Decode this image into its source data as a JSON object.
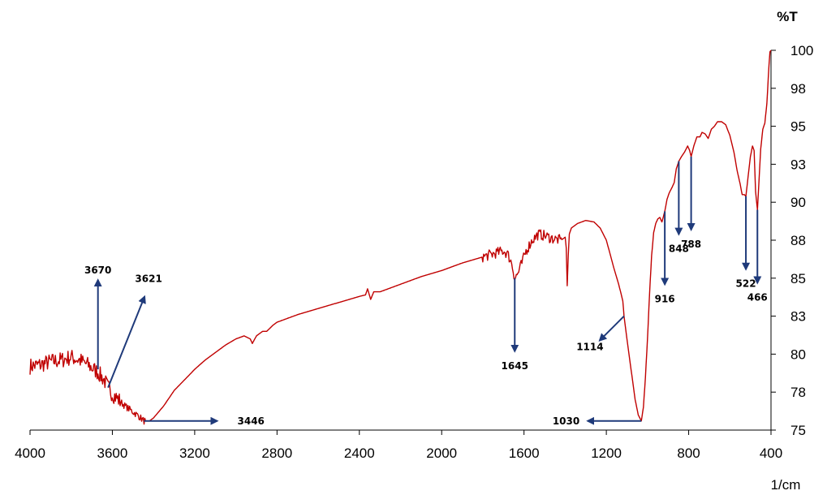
{
  "chart_data": {
    "type": "line",
    "y_unit_label": "%T",
    "x_unit_label": "1/cm",
    "xlim": [
      4000,
      400
    ],
    "ylim": [
      75,
      100
    ],
    "x_ticks": [
      "4000",
      "3600",
      "3200",
      "2800",
      "2400",
      "2000",
      "1600",
      "1200",
      "800",
      "400"
    ],
    "y_ticks": [
      "75",
      "78",
      "80",
      "83",
      "85",
      "88",
      "90",
      "93",
      "95",
      "98",
      "100"
    ],
    "line_color": "#c00000",
    "arrow_color": "#1f3a7a",
    "grid": false,
    "series": [
      {
        "name": "",
        "points": [
          [
            4000,
            79.2
          ],
          [
            3950,
            79.3
          ],
          [
            3900,
            79.5
          ],
          [
            3850,
            79.6
          ],
          [
            3800,
            79.8
          ],
          [
            3760,
            79.6
          ],
          [
            3720,
            79.3
          ],
          [
            3690,
            79.0
          ],
          [
            3670,
            78.8
          ],
          [
            3640,
            78.3
          ],
          [
            3621,
            77.8
          ],
          [
            3600,
            77.4
          ],
          [
            3570,
            77.0
          ],
          [
            3540,
            76.6
          ],
          [
            3500,
            76.2
          ],
          [
            3470,
            75.9
          ],
          [
            3446,
            75.6
          ],
          [
            3420,
            75.6
          ],
          [
            3400,
            75.8
          ],
          [
            3350,
            76.6
          ],
          [
            3300,
            77.6
          ],
          [
            3250,
            78.3
          ],
          [
            3200,
            79.0
          ],
          [
            3150,
            79.6
          ],
          [
            3100,
            80.1
          ],
          [
            3050,
            80.6
          ],
          [
            3000,
            81.0
          ],
          [
            2960,
            81.2
          ],
          [
            2930,
            81.0
          ],
          [
            2920,
            80.7
          ],
          [
            2900,
            81.2
          ],
          [
            2870,
            81.5
          ],
          [
            2850,
            81.5
          ],
          [
            2820,
            81.9
          ],
          [
            2800,
            82.1
          ],
          [
            2700,
            82.6
          ],
          [
            2600,
            83.0
          ],
          [
            2500,
            83.4
          ],
          [
            2400,
            83.8
          ],
          [
            2370,
            83.9
          ],
          [
            2360,
            84.3
          ],
          [
            2345,
            83.6
          ],
          [
            2330,
            84.1
          ],
          [
            2300,
            84.1
          ],
          [
            2200,
            84.6
          ],
          [
            2100,
            85.1
          ],
          [
            2000,
            85.5
          ],
          [
            1900,
            86.0
          ],
          [
            1800,
            86.4
          ],
          [
            1750,
            86.6
          ],
          [
            1700,
            86.8
          ],
          [
            1680,
            86.6
          ],
          [
            1660,
            86.0
          ],
          [
            1645,
            85.0
          ],
          [
            1630,
            85.3
          ],
          [
            1610,
            86.0
          ],
          [
            1590,
            86.8
          ],
          [
            1560,
            87.5
          ],
          [
            1530,
            87.9
          ],
          [
            1500,
            87.8
          ],
          [
            1460,
            87.6
          ],
          [
            1420,
            87.5
          ],
          [
            1400,
            87.7
          ],
          [
            1395,
            87.0
          ],
          [
            1390,
            84.5
          ],
          [
            1385,
            86.5
          ],
          [
            1380,
            87.9
          ],
          [
            1370,
            88.3
          ],
          [
            1340,
            88.6
          ],
          [
            1300,
            88.8
          ],
          [
            1260,
            88.7
          ],
          [
            1230,
            88.3
          ],
          [
            1200,
            87.5
          ],
          [
            1180,
            86.5
          ],
          [
            1160,
            85.5
          ],
          [
            1140,
            84.6
          ],
          [
            1120,
            83.5
          ],
          [
            1114,
            82.5
          ],
          [
            1100,
            81.0
          ],
          [
            1080,
            79.0
          ],
          [
            1060,
            77.0
          ],
          [
            1045,
            76.0
          ],
          [
            1030,
            75.6
          ],
          [
            1020,
            76.5
          ],
          [
            1010,
            78.5
          ],
          [
            1000,
            81.0
          ],
          [
            990,
            84.0
          ],
          [
            980,
            86.5
          ],
          [
            970,
            88.0
          ],
          [
            960,
            88.6
          ],
          [
            950,
            88.9
          ],
          [
            940,
            89.0
          ],
          [
            930,
            88.7
          ],
          [
            916,
            89.4
          ],
          [
            905,
            90.2
          ],
          [
            895,
            90.6
          ],
          [
            880,
            91.0
          ],
          [
            870,
            91.3
          ],
          [
            860,
            92.2
          ],
          [
            848,
            92.7
          ],
          [
            835,
            93.0
          ],
          [
            820,
            93.3
          ],
          [
            805,
            93.7
          ],
          [
            795,
            93.4
          ],
          [
            788,
            93.0
          ],
          [
            775,
            93.7
          ],
          [
            760,
            94.3
          ],
          [
            745,
            94.3
          ],
          [
            735,
            94.6
          ],
          [
            720,
            94.5
          ],
          [
            705,
            94.2
          ],
          [
            690,
            94.8
          ],
          [
            675,
            95.0
          ],
          [
            660,
            95.3
          ],
          [
            640,
            95.3
          ],
          [
            620,
            95.1
          ],
          [
            600,
            94.4
          ],
          [
            580,
            93.3
          ],
          [
            565,
            92.1
          ],
          [
            550,
            91.2
          ],
          [
            540,
            90.5
          ],
          [
            530,
            90.5
          ],
          [
            522,
            90.4
          ],
          [
            512,
            91.6
          ],
          [
            500,
            93.0
          ],
          [
            490,
            93.7
          ],
          [
            482,
            93.4
          ],
          [
            475,
            90.7
          ],
          [
            466,
            89.5
          ],
          [
            458,
            91.5
          ],
          [
            450,
            93.5
          ],
          [
            440,
            94.8
          ],
          [
            430,
            95.2
          ],
          [
            420,
            96.5
          ],
          [
            410,
            99.0
          ],
          [
            405,
            99.9
          ],
          [
            400,
            100.0
          ]
        ]
      }
    ],
    "annotations": [
      {
        "label": "3670",
        "x": 3670,
        "y": 79.0,
        "dir": "up"
      },
      {
        "label": "3621",
        "x": 3621,
        "y": 77.8,
        "dir": "up-right"
      },
      {
        "label": "3446",
        "x": 3446,
        "y": 75.6,
        "dir": "right"
      },
      {
        "label": "1645",
        "x": 1645,
        "y": 85.0,
        "dir": "down"
      },
      {
        "label": "1114",
        "x": 1114,
        "y": 82.5,
        "dir": "down-left"
      },
      {
        "label": "1030",
        "x": 1030,
        "y": 75.6,
        "dir": "left"
      },
      {
        "label": "916",
        "x": 916,
        "y": 89.4,
        "dir": "down"
      },
      {
        "label": "848",
        "x": 848,
        "y": 92.7,
        "dir": "down"
      },
      {
        "label": "788",
        "x": 788,
        "y": 93.0,
        "dir": "down"
      },
      {
        "label": "522",
        "x": 522,
        "y": 90.4,
        "dir": "down"
      },
      {
        "label": "466",
        "x": 466,
        "y": 89.5,
        "dir": "down"
      }
    ]
  }
}
